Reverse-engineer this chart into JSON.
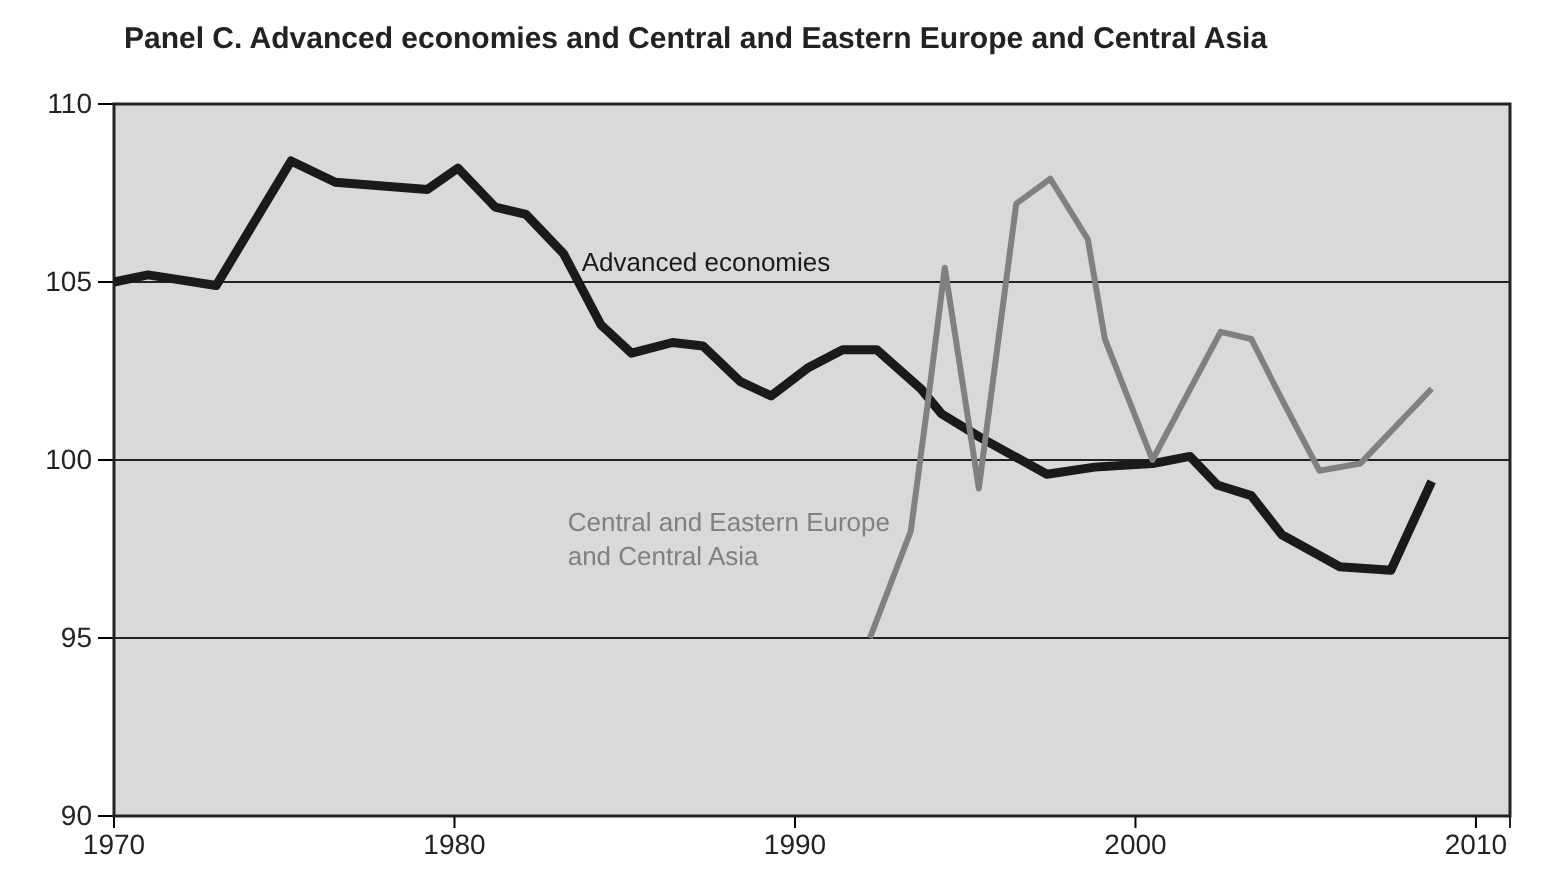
{
  "chart_data": {
    "type": "line",
    "title": "Panel C.  Advanced economies and Central and Eastern Europe and Central Asia",
    "xlim": [
      1970,
      2011
    ],
    "xticks": [
      1970,
      1980,
      1990,
      2000,
      2010
    ],
    "ylim": [
      90,
      110
    ],
    "yticks": [
      90,
      95,
      100,
      105,
      110
    ],
    "grid": "y",
    "marker": "none",
    "line_style": "solid",
    "series": [
      {
        "name": "Advanced economies",
        "color": "#1a1a1a",
        "x": [
          1970,
          1971,
          1973,
          1975.2,
          1976.5,
          1979.2,
          1980.1,
          1981.2,
          1982.1,
          1983.2,
          1984.3,
          1985.2,
          1986.4,
          1987.3,
          1988.4,
          1989.3,
          1990.4,
          1991.4,
          1992.4,
          1993.7,
          1994.3,
          1995.5,
          1997.4,
          1998.8,
          2000.5,
          2001.6,
          2002.4,
          2003.4,
          2004.3,
          2006,
          2007.5,
          2008.7
        ],
        "values": [
          105,
          105.2,
          104.9,
          108.4,
          107.8,
          107.6,
          108.2,
          107.1,
          106.9,
          105.8,
          103.8,
          103,
          103.3,
          103.2,
          102.2,
          101.8,
          102.6,
          103.1,
          103.1,
          102,
          101.3,
          100.6,
          99.6,
          99.8,
          99.9,
          100.1,
          99.3,
          99,
          97.9,
          97,
          96.9,
          99.4
        ]
      },
      {
        "name": "Central and Eastern Europe and Central Asia",
        "color": "#808080",
        "x": [
          1992.2,
          1993.4,
          1993.9,
          1994.4,
          1995.4,
          1996.5,
          1997.5,
          1998.6,
          1999.1,
          2000.5,
          2002.5,
          2003.4,
          2004.3,
          2005.4,
          2006.6,
          2008.7
        ],
        "values": [
          95,
          98,
          101.6,
          105.4,
          99.2,
          107.2,
          107.9,
          106.2,
          103.4,
          100,
          103.6,
          103.4,
          101.7,
          99.7,
          99.9,
          102
        ]
      }
    ]
  }
}
